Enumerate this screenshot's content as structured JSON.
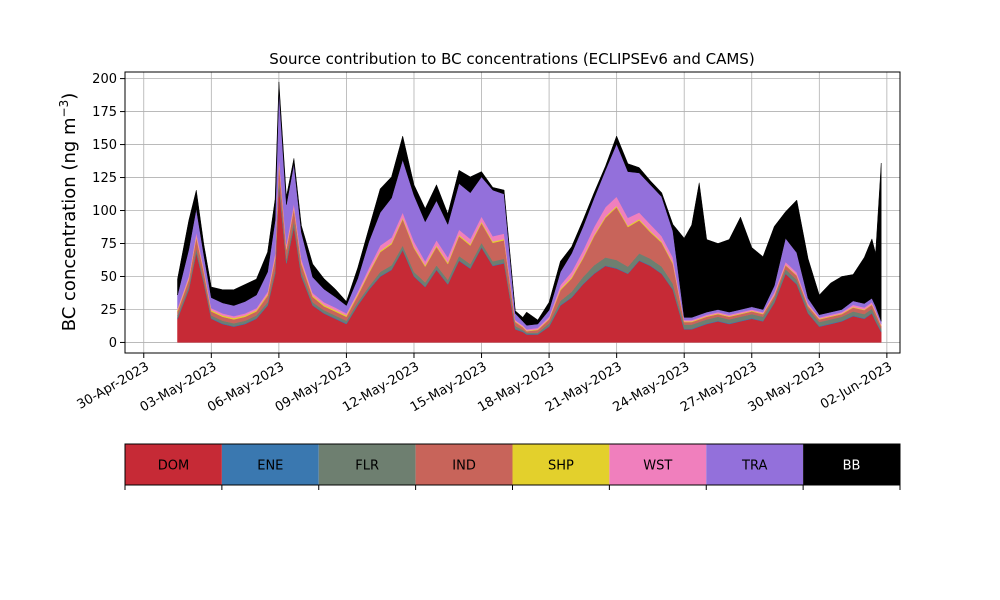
{
  "chart_data": {
    "type": "area",
    "stacked": true,
    "title": "Source contribution to BC concentrations (ECLIPSEv6 and CAMS)",
    "ylabel": "BC concentration (ng m⁻³)",
    "ylabel_main": "BC concentration (ng m",
    "ylabel_sup": "−3",
    "ylabel_close": ")",
    "ylim": [
      -8,
      205
    ],
    "yticks": [
      0,
      25,
      50,
      75,
      100,
      125,
      150,
      175,
      200
    ],
    "xlim": [
      "2023-04-29T04:00",
      "2023-06-02T14:00"
    ],
    "xticks": [
      "30-Apr-2023",
      "03-May-2023",
      "06-May-2023",
      "09-May-2023",
      "12-May-2023",
      "15-May-2023",
      "18-May-2023",
      "21-May-2023",
      "24-May-2023",
      "27-May-2023",
      "30-May-2023",
      "02-Jun-2023"
    ],
    "grid": true,
    "legend_position": "below",
    "x": [
      "2023-05-01T12:00",
      "2023-05-02T00:00",
      "2023-05-02T08:00",
      "2023-05-02T16:00",
      "2023-05-03T00:00",
      "2023-05-03T12:00",
      "2023-05-04T00:00",
      "2023-05-04T12:00",
      "2023-05-05T00:00",
      "2023-05-05T12:00",
      "2023-05-05T20:00",
      "2023-05-06T00:00",
      "2023-05-06T08:00",
      "2023-05-06T16:00",
      "2023-05-07T00:00",
      "2023-05-07T12:00",
      "2023-05-08T00:00",
      "2023-05-08T12:00",
      "2023-05-09T00:00",
      "2023-05-09T12:00",
      "2023-05-10T00:00",
      "2023-05-10T12:00",
      "2023-05-11T00:00",
      "2023-05-11T12:00",
      "2023-05-12T00:00",
      "2023-05-12T12:00",
      "2023-05-13T00:00",
      "2023-05-13T12:00",
      "2023-05-14T00:00",
      "2023-05-14T12:00",
      "2023-05-15T00:00",
      "2023-05-15T12:00",
      "2023-05-16T00:00",
      "2023-05-16T12:00",
      "2023-05-16T20:00",
      "2023-05-17T00:00",
      "2023-05-17T12:00",
      "2023-05-18T00:00",
      "2023-05-18T12:00",
      "2023-05-19T00:00",
      "2023-05-19T12:00",
      "2023-05-20T00:00",
      "2023-05-20T12:00",
      "2023-05-21T00:00",
      "2023-05-21T12:00",
      "2023-05-22T00:00",
      "2023-05-22T12:00",
      "2023-05-23T00:00",
      "2023-05-23T12:00",
      "2023-05-24T00:00",
      "2023-05-24T08:00",
      "2023-05-24T16:00",
      "2023-05-25T00:00",
      "2023-05-25T12:00",
      "2023-05-26T00:00",
      "2023-05-26T12:00",
      "2023-05-27T00:00",
      "2023-05-27T12:00",
      "2023-05-28T00:00",
      "2023-05-28T12:00",
      "2023-05-29T00:00",
      "2023-05-29T12:00",
      "2023-05-30T00:00",
      "2023-05-30T12:00",
      "2023-05-31T00:00",
      "2023-05-31T12:00",
      "2023-06-01T00:00",
      "2023-06-01T08:00",
      "2023-06-01T12:00",
      "2023-06-01T18:00"
    ],
    "series": [
      {
        "name": "DOM",
        "color": "#c62a36",
        "values": [
          18,
          40,
          68,
          45,
          18,
          14,
          12,
          14,
          18,
          28,
          52,
          120,
          60,
          88,
          50,
          28,
          22,
          18,
          14,
          28,
          40,
          50,
          55,
          70,
          50,
          42,
          55,
          44,
          62,
          56,
          72,
          58,
          60,
          10,
          8,
          6,
          6,
          12,
          28,
          34,
          44,
          52,
          58,
          56,
          52,
          62,
          58,
          52,
          40,
          10,
          10,
          12,
          14,
          16,
          14,
          16,
          18,
          16,
          30,
          52,
          44,
          22,
          12,
          14,
          16,
          20,
          18,
          22,
          16,
          8
        ]
      },
      {
        "name": "ENE",
        "color": "#3a78b0",
        "values": [
          0.5,
          0.5,
          0.5,
          0.5,
          0.5,
          0.5,
          0.5,
          0.5,
          0.5,
          0.5,
          0.5,
          0.5,
          0.5,
          0.5,
          0.5,
          0.5,
          0.5,
          0.5,
          0.5,
          0.5,
          0.5,
          0.5,
          0.5,
          0.5,
          0.5,
          0.5,
          0.5,
          0.5,
          0.5,
          0.5,
          0.5,
          0.5,
          0.5,
          0.5,
          0.5,
          0.5,
          0.5,
          0.5,
          0.5,
          0.5,
          0.5,
          0.5,
          0.5,
          0.5,
          0.5,
          0.5,
          0.5,
          0.5,
          0.5,
          0.5,
          0.5,
          0.5,
          0.5,
          0.5,
          0.5,
          0.5,
          0.5,
          0.5,
          0.5,
          0.5,
          0.5,
          0.5,
          0.5,
          0.5,
          0.5,
          0.5,
          0.5,
          0.5,
          0.5,
          0.5
        ]
      },
      {
        "name": "FLR",
        "color": "#6e7f70",
        "values": [
          2,
          2,
          3,
          2,
          2,
          2,
          2,
          2,
          2,
          2,
          3,
          4,
          3,
          4,
          3,
          2,
          2,
          2,
          2,
          2,
          2,
          3,
          3,
          3,
          3,
          3,
          3,
          3,
          3,
          3,
          3,
          3,
          3,
          2,
          1,
          1,
          1,
          2,
          3,
          4,
          5,
          6,
          6,
          6,
          5,
          5,
          5,
          5,
          4,
          3,
          3,
          3,
          3,
          3,
          3,
          3,
          3,
          3,
          3,
          3,
          3,
          3,
          3,
          3,
          3,
          3,
          3,
          3,
          3,
          2
        ]
      },
      {
        "name": "IND",
        "color": "#c8645a",
        "values": [
          3,
          5,
          8,
          6,
          3,
          3,
          3,
          3,
          3,
          5,
          8,
          12,
          7,
          9,
          6,
          4,
          3,
          3,
          3,
          5,
          10,
          15,
          16,
          20,
          18,
          12,
          14,
          12,
          15,
          14,
          15,
          14,
          14,
          3,
          2,
          1,
          2,
          3,
          8,
          10,
          14,
          22,
          30,
          40,
          30,
          25,
          20,
          18,
          15,
          2,
          2,
          2,
          2,
          2,
          2,
          2,
          2,
          2,
          2,
          3,
          3,
          2,
          2,
          2,
          2,
          3,
          3,
          3,
          3,
          2
        ]
      },
      {
        "name": "SHP",
        "color": "#e3d02c",
        "values": [
          1,
          1,
          1,
          1,
          1,
          1,
          1,
          1,
          1,
          1,
          1,
          1,
          1,
          1,
          1,
          1,
          1,
          1,
          1,
          1,
          1,
          1,
          1,
          1,
          1,
          1,
          1,
          1,
          1,
          1,
          1,
          1,
          1,
          0.5,
          0.5,
          0.5,
          0.5,
          0.5,
          1,
          1,
          1,
          1,
          1,
          1,
          1,
          1,
          1,
          1,
          1,
          0.5,
          0.5,
          0.5,
          0.5,
          0.5,
          0.5,
          0.5,
          0.5,
          0.5,
          0.5,
          0.5,
          0.5,
          0.5,
          0.5,
          0.5,
          0.5,
          0.5,
          0.5,
          0.5,
          0.5,
          0.5
        ]
      },
      {
        "name": "WST",
        "color": "#f07fbd",
        "values": [
          1.5,
          2,
          3,
          2,
          1.5,
          1.5,
          1.5,
          1.5,
          1.5,
          2,
          3,
          4,
          3,
          3,
          3,
          2,
          2,
          2,
          1.5,
          2,
          3,
          4,
          4,
          4,
          4,
          3,
          4,
          4,
          4,
          4,
          4,
          4,
          4,
          1,
          1,
          1,
          1,
          1.5,
          3,
          4,
          5,
          6,
          7,
          7,
          6,
          5,
          5,
          4,
          4,
          1,
          1,
          1,
          1,
          1,
          1,
          1,
          1,
          1,
          2,
          2,
          2,
          1.5,
          1,
          1,
          1,
          1.5,
          1.5,
          1.5,
          1.5,
          1
        ]
      },
      {
        "name": "TRA",
        "color": "#9370db",
        "values": [
          10,
          20,
          18,
          10,
          8,
          8,
          8,
          9,
          10,
          15,
          25,
          50,
          30,
          30,
          20,
          12,
          10,
          8,
          6,
          10,
          20,
          25,
          30,
          40,
          35,
          30,
          30,
          25,
          35,
          35,
          30,
          35,
          30,
          5,
          3,
          3,
          3,
          5,
          10,
          14,
          18,
          22,
          28,
          40,
          35,
          30,
          30,
          30,
          20,
          2,
          2,
          2,
          2,
          2,
          2,
          2,
          2,
          2,
          5,
          18,
          15,
          4,
          2,
          2,
          2,
          3,
          3,
          3,
          3,
          2
        ]
      },
      {
        "name": "BB",
        "color": "#000000",
        "values": [
          12,
          22,
          14,
          8,
          8,
          10,
          12,
          13,
          12,
          15,
          16,
          6,
          6,
          4,
          5,
          10,
          8,
          6,
          3,
          8,
          10,
          18,
          16,
          18,
          8,
          10,
          12,
          8,
          10,
          12,
          4,
          2,
          3,
          2,
          3,
          10,
          3,
          6,
          8,
          5,
          5,
          4,
          3,
          6,
          6,
          4,
          3,
          3,
          5,
          60,
          70,
          100,
          55,
          50,
          55,
          70,
          45,
          40,
          45,
          20,
          40,
          30,
          15,
          22,
          25,
          20,
          35,
          45,
          40,
          120
        ]
      }
    ]
  }
}
